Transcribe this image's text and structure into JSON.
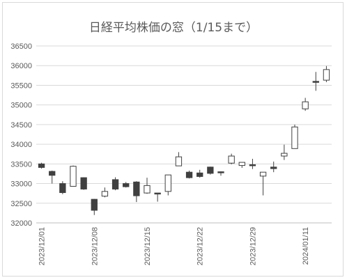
{
  "chart_data": {
    "type": "candlestick",
    "title": "日経平均株価の窓（1/15まで）",
    "ylim": [
      32000,
      36500
    ],
    "yticks": [
      "32000",
      "32500",
      "33000",
      "33500",
      "34000",
      "34500",
      "35000",
      "35500",
      "36000",
      "36500"
    ],
    "xticks": [
      "2023/12/01",
      "2023/12/08",
      "2023/12/15",
      "2023/12/22",
      "2023/12/29",
      "2024/01/11"
    ],
    "candles": [
      {
        "date": "2023/12/01",
        "open": 33500,
        "high": 33530,
        "low": 33380,
        "close": 33410
      },
      {
        "date": "2023/12/04",
        "open": 33310,
        "high": 33330,
        "low": 33000,
        "close": 33210
      },
      {
        "date": "2023/12/05",
        "open": 33000,
        "high": 33060,
        "low": 32730,
        "close": 32770
      },
      {
        "date": "2023/12/06",
        "open": 32930,
        "high": 33460,
        "low": 32930,
        "close": 33440
      },
      {
        "date": "2023/12/07",
        "open": 33150,
        "high": 33160,
        "low": 32840,
        "close": 32860
      },
      {
        "date": "2023/12/08",
        "open": 32600,
        "high": 32610,
        "low": 32200,
        "close": 32320
      },
      {
        "date": "2023/12/11",
        "open": 32680,
        "high": 32900,
        "low": 32650,
        "close": 32800
      },
      {
        "date": "2023/12/12",
        "open": 33100,
        "high": 33160,
        "low": 32830,
        "close": 32860
      },
      {
        "date": "2023/12/13",
        "open": 33000,
        "high": 33040,
        "low": 32900,
        "close": 32920
      },
      {
        "date": "2023/12/14",
        "open": 33040,
        "high": 33060,
        "low": 32530,
        "close": 32690
      },
      {
        "date": "2023/12/15",
        "open": 32760,
        "high": 33150,
        "low": 32740,
        "close": 32950
      },
      {
        "date": "2023/12/18",
        "open": 32760,
        "high": 32760,
        "low": 32540,
        "close": 32740
      },
      {
        "date": "2023/12/19",
        "open": 32800,
        "high": 33220,
        "low": 32700,
        "close": 33220
      },
      {
        "date": "2023/12/20",
        "open": 33450,
        "high": 33800,
        "low": 33450,
        "close": 33680
      },
      {
        "date": "2023/12/21",
        "open": 33290,
        "high": 33330,
        "low": 33130,
        "close": 33150
      },
      {
        "date": "2023/12/22",
        "open": 33270,
        "high": 33350,
        "low": 33150,
        "close": 33180
      },
      {
        "date": "2023/12/25",
        "open": 33420,
        "high": 33430,
        "low": 33230,
        "close": 33260
      },
      {
        "date": "2023/12/26",
        "open": 33300,
        "high": 33310,
        "low": 33200,
        "close": 33290
      },
      {
        "date": "2023/12/27",
        "open": 33520,
        "high": 33760,
        "low": 33490,
        "close": 33700
      },
      {
        "date": "2023/12/28",
        "open": 33460,
        "high": 33540,
        "low": 33400,
        "close": 33540
      },
      {
        "date": "2023/12/29",
        "open": 33480,
        "high": 33630,
        "low": 33370,
        "close": 33460
      },
      {
        "date": "2024/01/04",
        "open": 33190,
        "high": 33290,
        "low": 32700,
        "close": 33290
      },
      {
        "date": "2024/01/05",
        "open": 33420,
        "high": 33560,
        "low": 33290,
        "close": 33380
      },
      {
        "date": "2024/01/09",
        "open": 33700,
        "high": 33990,
        "low": 33600,
        "close": 33770
      },
      {
        "date": "2024/01/10",
        "open": 33890,
        "high": 34500,
        "low": 33890,
        "close": 34440
      },
      {
        "date": "2024/01/11",
        "open": 34900,
        "high": 35180,
        "low": 34850,
        "close": 35080
      },
      {
        "date": "2024/01/12",
        "open": 35600,
        "high": 35840,
        "low": 35360,
        "close": 35580
      },
      {
        "date": "2024/01/15",
        "open": 35630,
        "high": 35990,
        "low": 35580,
        "close": 35900
      }
    ]
  }
}
